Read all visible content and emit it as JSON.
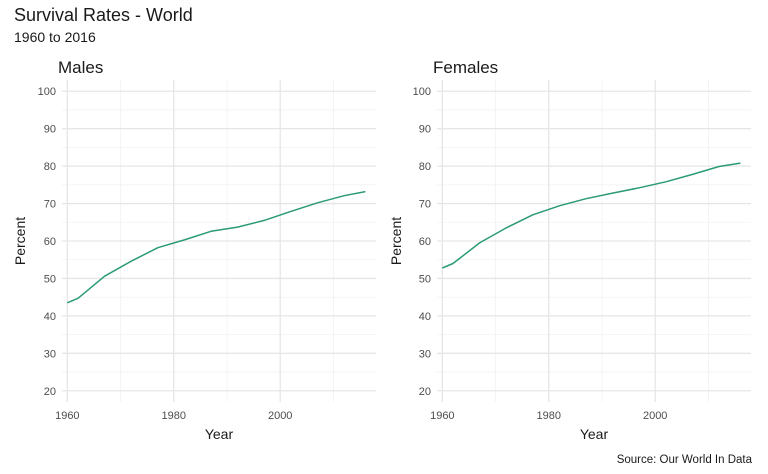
{
  "title": "Survival Rates - World",
  "subtitle": "1960 to 2016",
  "caption": "Source: Our World In Data",
  "chart_data": {
    "type": "line",
    "line_color": "#2a9a77",
    "xlim": [
      1959,
      2018
    ],
    "ylim": [
      17,
      103
    ],
    "x_ticks": [
      1960,
      1980,
      2000
    ],
    "y_ticks": [
      20,
      30,
      40,
      50,
      60,
      70,
      80,
      90,
      100
    ],
    "xlabel": "Year",
    "ylabel": "Percent",
    "grid": true,
    "panels": [
      {
        "title": "Males",
        "x": [
          1960,
          1962,
          1967,
          1972,
          1977,
          1982,
          1987,
          1992,
          1997,
          2002,
          2007,
          2012,
          2016
        ],
        "y": [
          43.5,
          44.7,
          50.6,
          54.6,
          58.2,
          60.3,
          62.6,
          63.7,
          65.5,
          67.9,
          70.2,
          72.1,
          73.2
        ]
      },
      {
        "title": "Females",
        "x": [
          1960,
          1962,
          1967,
          1972,
          1977,
          1982,
          1987,
          1992,
          1997,
          2002,
          2007,
          2012,
          2016
        ],
        "y": [
          52.8,
          54.0,
          59.5,
          63.5,
          67.0,
          69.4,
          71.3,
          72.8,
          74.2,
          75.8,
          77.8,
          79.9,
          80.8
        ]
      }
    ]
  }
}
